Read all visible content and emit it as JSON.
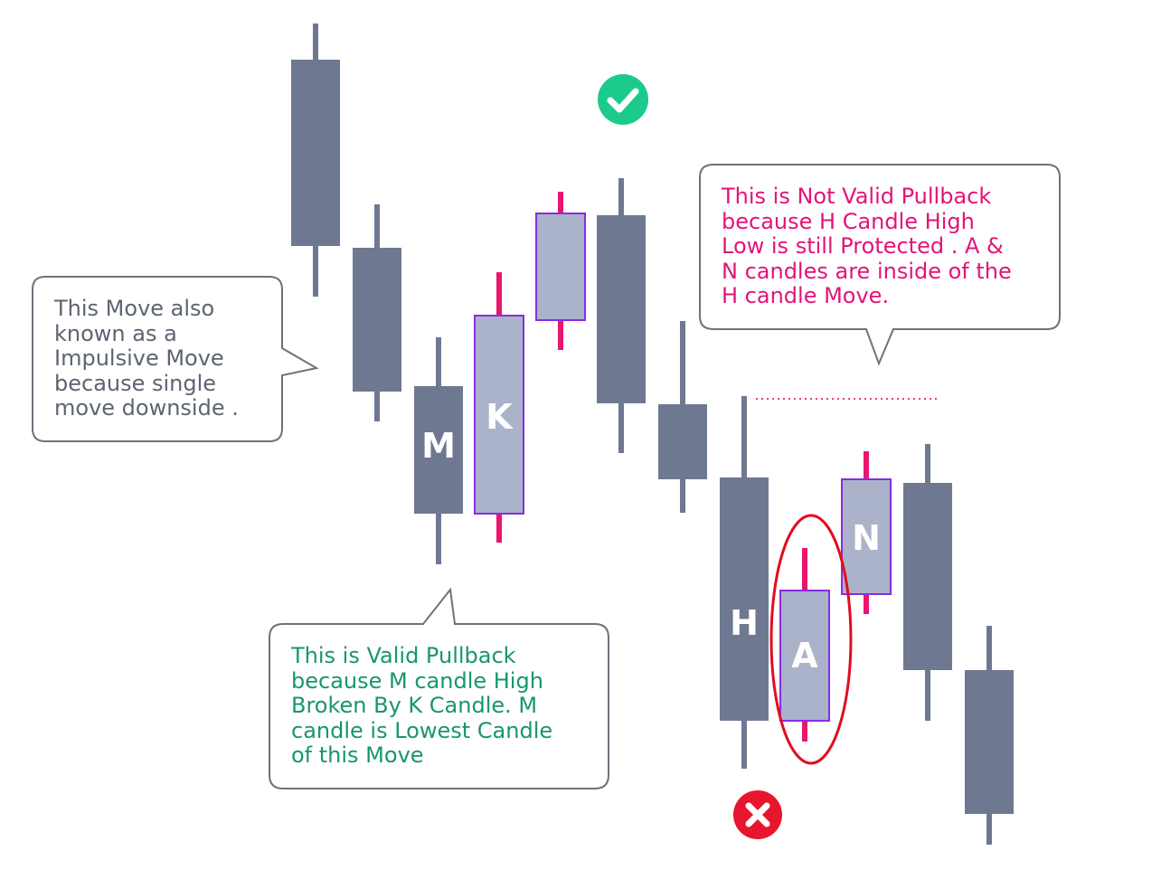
{
  "colors": {
    "bear_body": "#6f7891",
    "bull_body": "#aab3c9",
    "bull_outline": "#8a2be2",
    "bull_wick": "#e8166f",
    "box_stroke": "#6c727e",
    "text_grey": "#5d6472",
    "text_green": "#17976b",
    "text_pink": "#e3137a",
    "check_green": "#1ccb8c",
    "cross_red": "#e8152e",
    "circle_red": "#e00e1e",
    "dotted_line": "#e83d88"
  },
  "notes": {
    "impulse": {
      "lines": [
        "This Move also",
        "known as a",
        "Impulsive Move",
        "because single",
        "move downside ."
      ]
    },
    "valid": {
      "lines": [
        "This is Valid Pullback",
        "because M candle High",
        "Broken By K Candle.  M",
        "candle is Lowest Candle",
        "of this Move"
      ]
    },
    "invalid": {
      "lines": [
        "This is Not Valid Pullback",
        "because H Candle High",
        "Low is still Protected . A &",
        "N candles are inside of the",
        "H candle Move."
      ]
    }
  },
  "candles": [
    {
      "id": "c1",
      "kind": "bear",
      "label": ""
    },
    {
      "id": "c2",
      "kind": "bear",
      "label": ""
    },
    {
      "id": "m",
      "kind": "bear",
      "label": "M"
    },
    {
      "id": "k",
      "kind": "bull",
      "label": "K"
    },
    {
      "id": "c5",
      "kind": "bull",
      "label": ""
    },
    {
      "id": "c6",
      "kind": "bear",
      "label": ""
    },
    {
      "id": "c7",
      "kind": "bear",
      "label": ""
    },
    {
      "id": "h",
      "kind": "bear",
      "label": "H"
    },
    {
      "id": "a",
      "kind": "bull",
      "label": "A"
    },
    {
      "id": "n",
      "kind": "bull",
      "label": "N"
    },
    {
      "id": "c11",
      "kind": "bear",
      "label": ""
    },
    {
      "id": "c12",
      "kind": "bear",
      "label": ""
    }
  ],
  "icons": {
    "valid": "check-icon",
    "invalid": "cross-icon"
  }
}
